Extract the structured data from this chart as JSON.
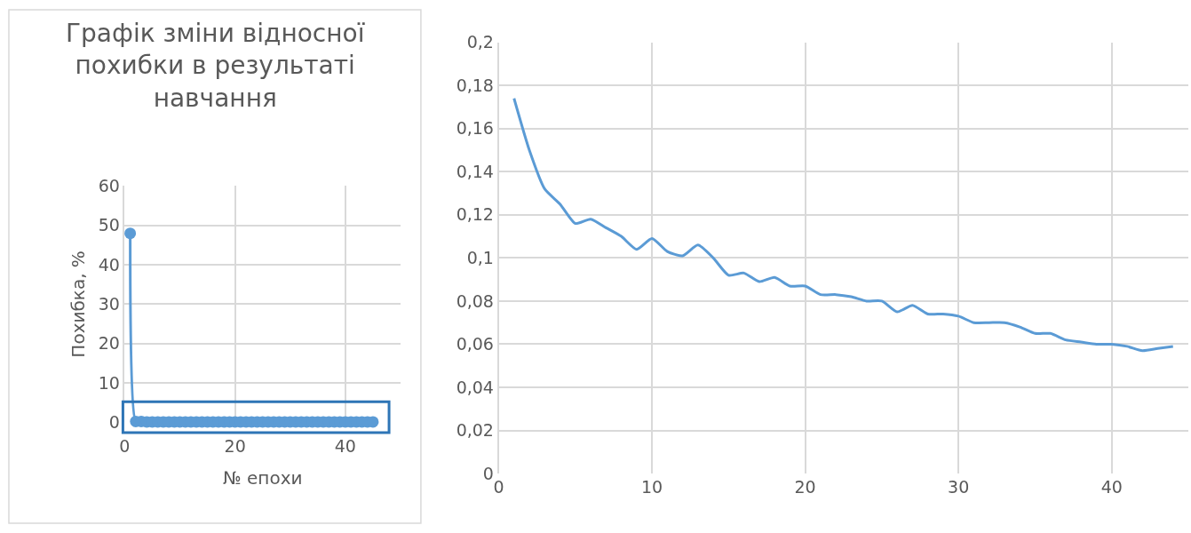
{
  "chart_data": [
    {
      "type": "line",
      "title": "Графік зміни відносної похибки в результаті навчання",
      "xlabel": "№ епохи",
      "ylabel": "Похибка, %",
      "marker": "circle",
      "line_style": "solid",
      "grid": true,
      "xlim": [
        0,
        50
      ],
      "xticks": [
        0,
        20,
        40
      ],
      "ylim": [
        0,
        60
      ],
      "yticks": [
        0,
        10,
        20,
        30,
        40,
        50,
        60
      ],
      "x": [
        1,
        2,
        3,
        4,
        5,
        6,
        7,
        8,
        9,
        10,
        11,
        12,
        13,
        14,
        15,
        16,
        17,
        18,
        19,
        20,
        21,
        22,
        23,
        24,
        25,
        26,
        27,
        28,
        29,
        30,
        31,
        32,
        33,
        34,
        35,
        36,
        37,
        38,
        39,
        40,
        41,
        42,
        43,
        44,
        45
      ],
      "series": [
        {
          "color": "#5b9bd5",
          "values": [
            48,
            0.2,
            0.2,
            0.1,
            0.1,
            0.1,
            0.1,
            0.1,
            0.1,
            0.1,
            0.1,
            0.1,
            0.1,
            0.1,
            0.1,
            0.1,
            0.1,
            0.1,
            0.1,
            0.1,
            0.1,
            0.1,
            0.1,
            0.1,
            0.1,
            0.1,
            0.1,
            0.1,
            0.1,
            0.1,
            0.1,
            0.1,
            0.1,
            0.1,
            0.1,
            0.1,
            0.1,
            0.1,
            0.1,
            0.1,
            0.1,
            0.1,
            0.1,
            0.1,
            0.1
          ]
        }
      ]
    },
    {
      "type": "line",
      "marker": "none",
      "line_style": "solid",
      "grid": true,
      "xlim": [
        0,
        45
      ],
      "xticks": [
        0,
        10,
        20,
        30,
        40
      ],
      "ylim": [
        0,
        0.2
      ],
      "yticks": [
        0,
        {
          "value": 0.02,
          "label": "0,02"
        },
        {
          "value": 0.04,
          "label": "0,04"
        },
        {
          "value": 0.06,
          "label": "0,06"
        },
        {
          "value": 0.08,
          "label": "0,08"
        },
        {
          "value": 0.1,
          "label": "0,1"
        },
        {
          "value": 0.12,
          "label": "0,12"
        },
        {
          "value": 0.14,
          "label": "0,14"
        },
        {
          "value": 0.16,
          "label": "0,16"
        },
        {
          "value": 0.18,
          "label": "0,18"
        },
        {
          "value": 0.2,
          "label": "0,2"
        }
      ],
      "x": [
        1,
        2,
        3,
        4,
        5,
        6,
        7,
        8,
        9,
        10,
        11,
        12,
        13,
        14,
        15,
        16,
        17,
        18,
        19,
        20,
        21,
        22,
        23,
        24,
        25,
        26,
        27,
        28,
        29,
        30,
        31,
        32,
        33,
        34,
        35,
        36,
        37,
        38,
        39,
        40,
        41,
        42,
        43,
        44
      ],
      "series": [
        {
          "color": "#5b9bd5",
          "values": [
            0.174,
            0.15,
            0.132,
            0.125,
            0.116,
            0.118,
            0.114,
            0.11,
            0.104,
            0.109,
            0.103,
            0.101,
            0.106,
            0.1,
            0.092,
            0.093,
            0.089,
            0.091,
            0.087,
            0.087,
            0.083,
            0.083,
            0.082,
            0.08,
            0.08,
            0.075,
            0.078,
            0.074,
            0.074,
            0.073,
            0.07,
            0.07,
            0.07,
            0.068,
            0.065,
            0.065,
            0.062,
            0.061,
            0.06,
            0.06,
            0.059,
            0.057,
            0.058,
            0.059
          ]
        }
      ]
    }
  ]
}
